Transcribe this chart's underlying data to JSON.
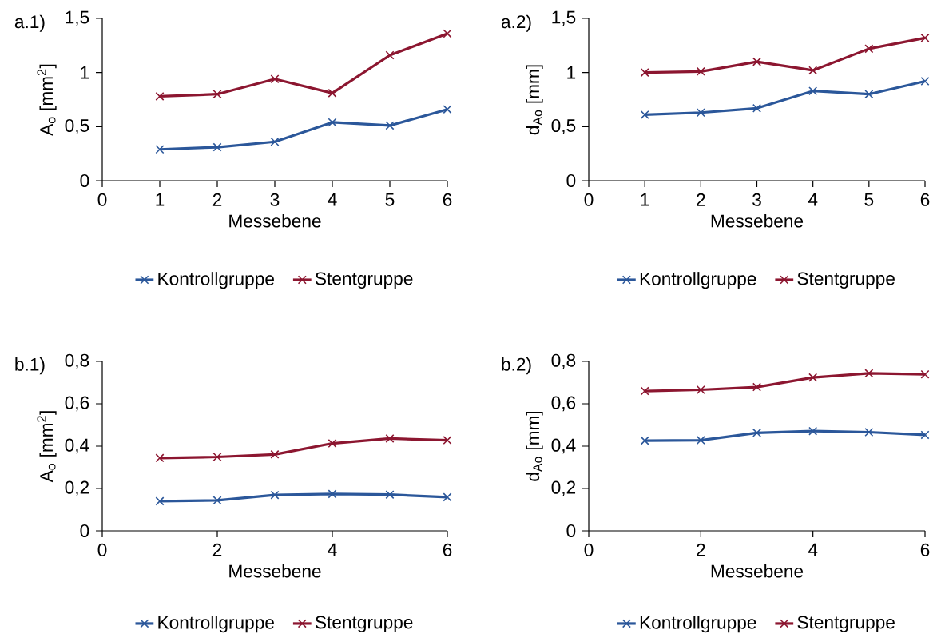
{
  "chart_data": [
    {
      "type": "line",
      "annotations": [
        "a.1)"
      ],
      "xlabel": "Messebene",
      "ylabel": "A$_{o}$ [mm$^{2}$]",
      "x": [
        1,
        2,
        3,
        4,
        5,
        6
      ],
      "xlim": [
        0,
        6
      ],
      "xticks": [
        0,
        1,
        2,
        3,
        4,
        5,
        6
      ],
      "ylim": [
        0,
        1.5
      ],
      "yticks": [
        0,
        {
          "value": 0.5,
          "label": "0,5"
        },
        1,
        {
          "value": 1.5,
          "label": "1,5"
        }
      ],
      "legend": "bottom",
      "marker": "cross",
      "line_style": "solid",
      "series": [
        {
          "name": "Kontrollgruppe",
          "color": "#2b579a",
          "values": [
            0.29,
            0.31,
            0.36,
            0.54,
            0.51,
            0.66
          ]
        },
        {
          "name": "Stentgruppe",
          "color": "#8c1630",
          "values": [
            0.78,
            0.8,
            0.94,
            0.81,
            1.16,
            1.36
          ]
        }
      ]
    },
    {
      "type": "line",
      "annotations": [
        "a.2)"
      ],
      "xlabel": "Messebene",
      "ylabel": "d$_{Ao}$ [mm]",
      "x": [
        1,
        2,
        3,
        4,
        5,
        6
      ],
      "xlim": [
        0,
        6
      ],
      "xticks": [
        0,
        1,
        2,
        3,
        4,
        5,
        6
      ],
      "ylim": [
        0,
        1.5
      ],
      "yticks": [
        0,
        {
          "value": 0.5,
          "label": "0,5"
        },
        1,
        {
          "value": 1.5,
          "label": "1,5"
        }
      ],
      "legend": "bottom",
      "marker": "cross",
      "line_style": "solid",
      "series": [
        {
          "name": "Kontrollgruppe",
          "color": "#2b579a",
          "values": [
            0.61,
            0.63,
            0.67,
            0.83,
            0.8,
            0.92
          ]
        },
        {
          "name": "Stentgruppe",
          "color": "#8c1630",
          "values": [
            1.0,
            1.01,
            1.1,
            1.02,
            1.22,
            1.32
          ]
        }
      ]
    },
    {
      "type": "line",
      "annotations": [
        "b.1)"
      ],
      "xlabel": "Messebene",
      "ylabel": "A$_{o}$ [mm$^{2}$]",
      "x": [
        1,
        2,
        3,
        4,
        5,
        6
      ],
      "xlim": [
        0,
        6
      ],
      "xticks": [
        0,
        2,
        4,
        6
      ],
      "ylim": [
        0,
        0.8
      ],
      "yticks": [
        0,
        {
          "value": 0.2,
          "label": "0,2"
        },
        {
          "value": 0.4,
          "label": "0,4"
        },
        {
          "value": 0.6,
          "label": "0,6"
        },
        {
          "value": 0.8,
          "label": "0,8"
        }
      ],
      "legend": "bottom",
      "marker": "cross",
      "line_style": "solid",
      "series": [
        {
          "name": "Kontrollgruppe",
          "color": "#2b579a",
          "values": [
            0.14,
            0.144,
            0.169,
            0.174,
            0.171,
            0.159
          ]
        },
        {
          "name": "Stentgruppe",
          "color": "#8c1630",
          "values": [
            0.344,
            0.349,
            0.361,
            0.413,
            0.436,
            0.428
          ]
        }
      ]
    },
    {
      "type": "line",
      "annotations": [
        "b.2)"
      ],
      "xlabel": "Messebene",
      "ylabel": "d$_{Ao}$ [mm]",
      "x": [
        1,
        2,
        3,
        4,
        5,
        6
      ],
      "xlim": [
        0,
        6
      ],
      "xticks": [
        0,
        2,
        4,
        6
      ],
      "ylim": [
        0,
        0.8
      ],
      "yticks": [
        0,
        {
          "value": 0.2,
          "label": "0,2"
        },
        {
          "value": 0.4,
          "label": "0,4"
        },
        {
          "value": 0.6,
          "label": "0,6"
        },
        {
          "value": 0.8,
          "label": "0,8"
        }
      ],
      "legend": "bottom",
      "marker": "cross",
      "line_style": "solid",
      "series": [
        {
          "name": "Kontrollgruppe",
          "color": "#2b579a",
          "values": [
            0.426,
            0.428,
            0.463,
            0.471,
            0.466,
            0.453
          ]
        },
        {
          "name": "Stentgruppe",
          "color": "#8c1630",
          "values": [
            0.66,
            0.666,
            0.679,
            0.724,
            0.744,
            0.739
          ]
        }
      ]
    }
  ]
}
